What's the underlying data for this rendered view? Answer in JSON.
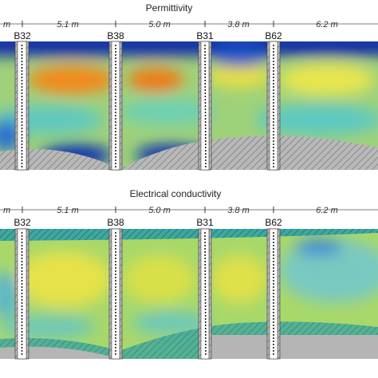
{
  "panels": [
    {
      "title": "Permittivity",
      "boreholes": [
        "B32",
        "B38",
        "B31",
        "B62"
      ],
      "distances": [
        "m",
        "5.1 m",
        "5.0 m",
        "3.8 m",
        "6.2 m"
      ]
    },
    {
      "title": "Electrical conductivity",
      "boreholes": [
        "B32",
        "B38",
        "B31",
        "B62"
      ],
      "distances": [
        "m",
        "5.1 m",
        "5.0 m",
        "3.8 m",
        "6.2 m"
      ]
    }
  ]
}
